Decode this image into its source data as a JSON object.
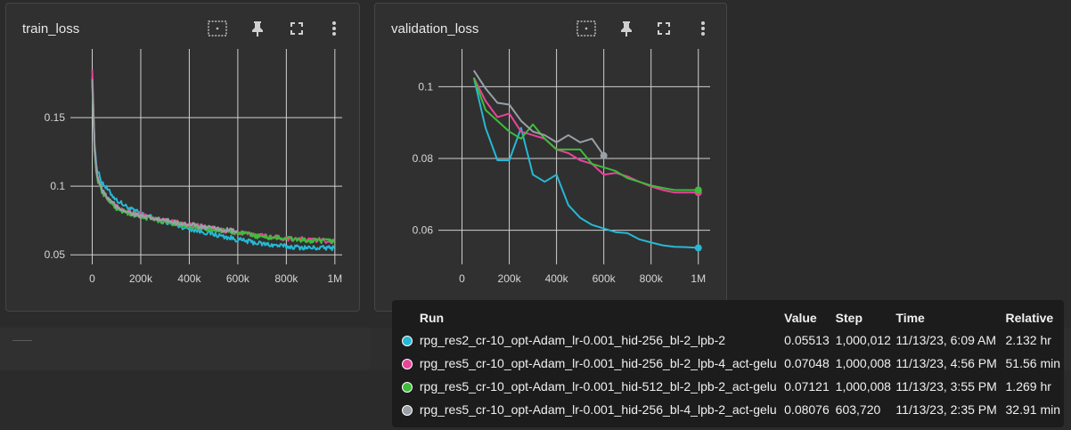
{
  "cards": [
    {
      "title": "train_loss"
    },
    {
      "title": "validation_loss"
    }
  ],
  "icons": [
    "fit-domain-icon",
    "pin-icon",
    "fullscreen-icon",
    "more-vert-icon"
  ],
  "chart_data": [
    {
      "type": "line",
      "title": "train_loss",
      "xlim": [
        -90000,
        1030000
      ],
      "ylim": [
        0.043,
        0.2
      ],
      "x_ticks": [
        0,
        200000,
        400000,
        600000,
        800000,
        1000000
      ],
      "x_tick_labels": [
        "0",
        "200k",
        "400k",
        "600k",
        "800k",
        "1M"
      ],
      "y_ticks": [
        0.05,
        0.1,
        0.15
      ],
      "y_tick_labels": [
        "0.05",
        "0.1",
        "0.15"
      ],
      "grid": true,
      "series": [
        {
          "color": "#26b8d5",
          "x": [
            0,
            10000,
            20000,
            40000,
            70000,
            100000,
            150000,
            200000,
            300000,
            400000,
            500000,
            600000,
            700000,
            800000,
            900000,
            1000000
          ],
          "y": [
            0.18,
            0.13,
            0.112,
            0.103,
            0.096,
            0.09,
            0.084,
            0.08,
            0.074,
            0.069,
            0.065,
            0.061,
            0.058,
            0.056,
            0.055,
            0.055
          ]
        },
        {
          "color": "#e8449a",
          "x": [
            0,
            10000,
            20000,
            40000,
            70000,
            100000,
            150000,
            200000,
            300000,
            400000,
            500000,
            600000,
            700000,
            800000,
            900000,
            1000000
          ],
          "y": [
            0.185,
            0.128,
            0.108,
            0.097,
            0.09,
            0.085,
            0.081,
            0.079,
            0.075,
            0.072,
            0.069,
            0.066,
            0.064,
            0.062,
            0.061,
            0.06
          ]
        },
        {
          "color": "#3dbd3a",
          "x": [
            0,
            10000,
            20000,
            40000,
            70000,
            100000,
            150000,
            200000,
            300000,
            400000,
            500000,
            600000,
            700000,
            800000,
            900000,
            1000000
          ],
          "y": [
            0.175,
            0.125,
            0.106,
            0.096,
            0.089,
            0.084,
            0.08,
            0.078,
            0.074,
            0.071,
            0.068,
            0.066,
            0.063,
            0.062,
            0.06,
            0.06
          ]
        },
        {
          "color": "#9aa0a6",
          "x": [
            0,
            10000,
            20000,
            40000,
            70000,
            100000,
            150000,
            200000,
            300000,
            400000,
            500000,
            600000
          ],
          "y": [
            0.178,
            0.127,
            0.108,
            0.097,
            0.09,
            0.085,
            0.081,
            0.078,
            0.075,
            0.072,
            0.069,
            0.067
          ]
        }
      ]
    },
    {
      "type": "line",
      "title": "validation_loss",
      "xlim": [
        -100000,
        1050000
      ],
      "ylim": [
        0.0505,
        0.1105
      ],
      "x_ticks": [
        0,
        200000,
        400000,
        600000,
        800000,
        1000000
      ],
      "x_tick_labels": [
        "0",
        "200k",
        "400k",
        "600k",
        "800k",
        "1M"
      ],
      "y_ticks": [
        0.06,
        0.08,
        0.1
      ],
      "y_tick_labels": [
        "0.06",
        "0.08",
        "0.1"
      ],
      "grid": true,
      "series": [
        {
          "color": "#26b8d5",
          "x": [
            50000,
            100000,
            150000,
            200000,
            250000,
            300000,
            350000,
            400000,
            450000,
            500000,
            550000,
            600000,
            650000,
            700000,
            750000,
            800000,
            850000,
            900000,
            950000,
            1000000
          ],
          "y": [
            0.1025,
            0.0885,
            0.0795,
            0.0795,
            0.0885,
            0.0755,
            0.0735,
            0.0755,
            0.067,
            0.0635,
            0.0615,
            0.0605,
            0.0595,
            0.0592,
            0.0575,
            0.0566,
            0.0558,
            0.0554,
            0.0553,
            0.0551
          ]
        },
        {
          "color": "#e8449a",
          "x": [
            50000,
            100000,
            150000,
            200000,
            250000,
            300000,
            350000,
            400000,
            450000,
            500000,
            550000,
            600000,
            650000,
            700000,
            750000,
            800000,
            850000,
            900000,
            950000,
            1000000
          ],
          "y": [
            0.1025,
            0.096,
            0.0915,
            0.0925,
            0.0875,
            0.0865,
            0.0855,
            0.0825,
            0.0815,
            0.0795,
            0.0785,
            0.0755,
            0.076,
            0.075,
            0.0735,
            0.0722,
            0.0712,
            0.0705,
            0.0705,
            0.0705
          ]
        },
        {
          "color": "#3dbd3a",
          "x": [
            50000,
            100000,
            150000,
            200000,
            250000,
            300000,
            350000,
            400000,
            450000,
            500000,
            550000,
            600000,
            650000,
            700000,
            750000,
            800000,
            850000,
            900000,
            950000,
            1000000
          ],
          "y": [
            0.1025,
            0.0935,
            0.0905,
            0.0875,
            0.0855,
            0.0895,
            0.0855,
            0.0825,
            0.0825,
            0.0825,
            0.0785,
            0.0775,
            0.0765,
            0.0745,
            0.0735,
            0.0725,
            0.0718,
            0.0712,
            0.0712,
            0.0712
          ]
        },
        {
          "color": "#9aa0a6",
          "x": [
            50000,
            100000,
            150000,
            200000,
            250000,
            300000,
            350000,
            400000,
            450000,
            500000,
            550000,
            600000
          ],
          "y": [
            0.1045,
            0.0995,
            0.0955,
            0.095,
            0.0905,
            0.0875,
            0.0865,
            0.0845,
            0.0865,
            0.0845,
            0.0855,
            0.0808
          ]
        }
      ]
    }
  ],
  "tooltip": {
    "headers": {
      "run": "Run",
      "value": "Value",
      "step": "Step",
      "time": "Time",
      "relative": "Relative"
    },
    "rows": [
      {
        "color": "#26b8d5",
        "run": "rpg_res2_cr-10_opt-Adam_lr-0.001_hid-256_bl-2_lpb-2",
        "value": "0.05513",
        "step": "1,000,012",
        "time": "11/13/23, 6:09 AM",
        "relative": "2.132 hr"
      },
      {
        "color": "#e8449a",
        "run": "rpg_res5_cr-10_opt-Adam_lr-0.001_hid-256_bl-2_lpb-4_act-gelu",
        "value": "0.07048",
        "step": "1,000,008",
        "time": "11/13/23, 4:56 PM",
        "relative": "51.56 min"
      },
      {
        "color": "#3dbd3a",
        "run": "rpg_res5_cr-10_opt-Adam_lr-0.001_hid-512_bl-2_lpb-2_act-gelu",
        "value": "0.07121",
        "step": "1,000,008",
        "time": "11/13/23, 3:55 PM",
        "relative": "1.269 hr"
      },
      {
        "color": "#9aa0a6",
        "run": "rpg_res5_cr-10_opt-Adam_lr-0.001_hid-256_bl-4_lpb-2_act-gelu",
        "value": "0.08076",
        "step": "603,720",
        "time": "11/13/23, 2:35 PM",
        "relative": "32.91 min"
      }
    ]
  }
}
